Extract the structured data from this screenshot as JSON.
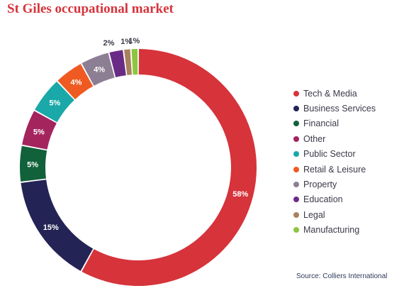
{
  "title": "St Giles occupational market",
  "source": "Source: Colliers International",
  "chart_data": {
    "type": "pie",
    "donut": true,
    "title": "St Giles occupational market",
    "legend_position": "right",
    "slices": [
      {
        "name": "Tech & Media",
        "value": 58,
        "label": "58%",
        "color": "#d6333b"
      },
      {
        "name": "Business Services",
        "value": 15,
        "label": "15%",
        "color": "#232355"
      },
      {
        "name": "Financial",
        "value": 5,
        "label": "5%",
        "color": "#11613a"
      },
      {
        "name": "Other",
        "value": 5,
        "label": "5%",
        "color": "#a4245e"
      },
      {
        "name": "Public Sector",
        "value": 5,
        "label": "5%",
        "color": "#1aa8a8"
      },
      {
        "name": "Retail & Leisure",
        "value": 4,
        "label": "4%",
        "color": "#ef5a22"
      },
      {
        "name": "Property",
        "value": 4,
        "label": "4%",
        "color": "#8c7f93"
      },
      {
        "name": "Education",
        "value": 2,
        "label": "2%",
        "color": "#6a2b86"
      },
      {
        "name": "Legal",
        "value": 1,
        "label": "1%",
        "color": "#a8825c"
      },
      {
        "name": "Manufacturing",
        "value": 1,
        "label": "1%",
        "color": "#8cc63f"
      }
    ]
  }
}
